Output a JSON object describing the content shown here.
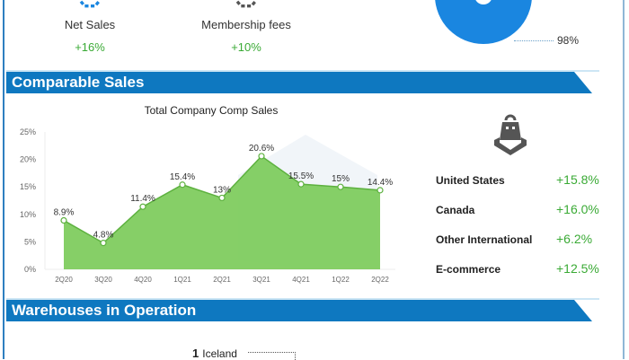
{
  "kpis": [
    {
      "label": "Net Sales",
      "value": "+16%",
      "icon": "blue-cycle-icon"
    },
    {
      "label": "Membership fees",
      "value": "+10%",
      "icon": "gray-cycle-icon"
    }
  ],
  "donut": {
    "label": "98%",
    "color": "#1a86e0"
  },
  "sections": {
    "comparable_sales": "Comparable Sales",
    "warehouses": "Warehouses in Operation"
  },
  "colors": {
    "banner": "#0e78c0",
    "positive": "#3aaa35",
    "area_fill": "#7ccb5a",
    "area_line": "#5db13f"
  },
  "chart_data": {
    "type": "area",
    "title": "Total Company Comp Sales",
    "categories": [
      "2Q20",
      "3Q20",
      "4Q20",
      "1Q21",
      "2Q21",
      "3Q21",
      "4Q21",
      "1Q22",
      "2Q22"
    ],
    "values": [
      8.9,
      4.8,
      11.4,
      15.4,
      13,
      20.6,
      15.5,
      15,
      14.4
    ],
    "data_labels": [
      "8.9%",
      "4.8%",
      "11.4%",
      "15.4%",
      "13%",
      "20.6%",
      "15.5%",
      "15%",
      "14.4%"
    ],
    "y_ticks": [
      "0%",
      "5%",
      "10%",
      "15%",
      "20%",
      "25%"
    ],
    "xlabel": "",
    "ylabel": "",
    "ylim": [
      0,
      25
    ],
    "grid": false,
    "legend": null
  },
  "regions": {
    "icon": "shopping-bag-icon",
    "items": [
      {
        "name": "United States",
        "value": "+15.8%"
      },
      {
        "name": "Canada",
        "value": "+16.0%"
      },
      {
        "name": "Other International",
        "value": "+6.2%"
      },
      {
        "name": "E-commerce",
        "value": "+12.5%"
      }
    ]
  },
  "warehouses": {
    "items": [
      {
        "count": "1",
        "country": "Iceland"
      }
    ]
  }
}
